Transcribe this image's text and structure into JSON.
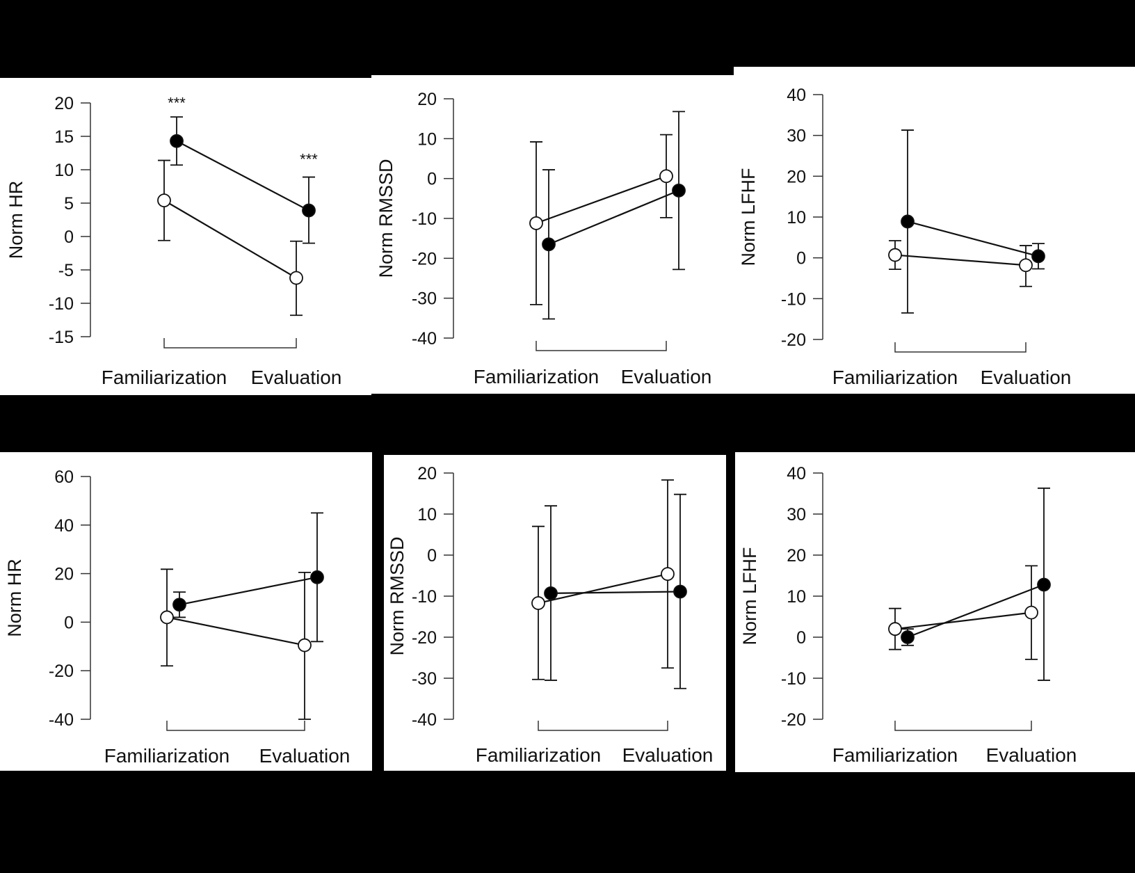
{
  "colors": {
    "background": "#000000",
    "panel": "#ffffff",
    "ink": "#111111"
  },
  "chart_data": [
    {
      "type": "line",
      "panel": "top-left",
      "ylabel": "Norm HR",
      "ylim": [
        -15,
        20
      ],
      "yticks": [
        20,
        15,
        10,
        5,
        0,
        -5,
        -10,
        -15
      ],
      "categories": [
        "Familiarization",
        "Evaluation"
      ],
      "series": [
        {
          "marker": "open",
          "values": [
            5.4,
            -6.2
          ],
          "err_low": [
            -0.6,
            -11.8
          ],
          "err_high": [
            11.4,
            -0.7
          ]
        },
        {
          "marker": "filled",
          "values": [
            14.3,
            3.9
          ],
          "err_low": [
            10.7,
            -1.0
          ],
          "err_high": [
            17.9,
            8.9
          ]
        }
      ],
      "annotations": [
        {
          "text": "***",
          "category": 0,
          "y": 19.2
        },
        {
          "text": "***",
          "category": 1,
          "y": 10.8
        }
      ]
    },
    {
      "type": "line",
      "panel": "top-middle",
      "ylabel": "Norm RMSSD",
      "ylim": [
        -40,
        20
      ],
      "yticks": [
        20,
        10,
        0,
        -10,
        -20,
        -30,
        -40
      ],
      "categories": [
        "Familiarization",
        "Evaluation"
      ],
      "series": [
        {
          "marker": "open",
          "values": [
            -11.2,
            0.6
          ],
          "err_low": [
            -31.6,
            -9.8
          ],
          "err_high": [
            9.2,
            11.0
          ]
        },
        {
          "marker": "filled",
          "values": [
            -16.5,
            -3.0
          ],
          "err_low": [
            -35.2,
            -22.8
          ],
          "err_high": [
            2.2,
            16.8
          ]
        }
      ],
      "annotations": []
    },
    {
      "type": "line",
      "panel": "top-right",
      "ylabel": "Norm LFHF",
      "ylim": [
        -20,
        40
      ],
      "yticks": [
        40,
        30,
        20,
        10,
        0,
        -10,
        -20
      ],
      "categories": [
        "Familiarization",
        "Evaluation"
      ],
      "series": [
        {
          "marker": "open",
          "values": [
            0.7,
            -1.8
          ],
          "err_low": [
            -2.8,
            -7.0
          ],
          "err_high": [
            4.2,
            3.0
          ]
        },
        {
          "marker": "filled",
          "values": [
            8.9,
            0.4
          ],
          "err_low": [
            -13.5,
            -2.7
          ],
          "err_high": [
            31.3,
            3.5
          ]
        }
      ],
      "annotations": []
    },
    {
      "type": "line",
      "panel": "bottom-left",
      "ylabel": "Norm HR",
      "ylim": [
        -40,
        60
      ],
      "yticks": [
        60,
        40,
        20,
        0,
        -20,
        -40
      ],
      "categories": [
        "Familiarization",
        "Evaluation"
      ],
      "series": [
        {
          "marker": "open",
          "values": [
            2.0,
            -9.5
          ],
          "err_low": [
            -18.0,
            -40.0
          ],
          "err_high": [
            21.8,
            20.5
          ]
        },
        {
          "marker": "filled",
          "values": [
            7.2,
            18.5
          ],
          "err_low": [
            2.0,
            -8.0
          ],
          "err_high": [
            12.4,
            45.0
          ]
        }
      ],
      "annotations": []
    },
    {
      "type": "line",
      "panel": "bottom-middle",
      "ylabel": "Norm RMSSD",
      "ylim": [
        -40,
        20
      ],
      "yticks": [
        20,
        10,
        0,
        -10,
        -20,
        -30,
        -40
      ],
      "categories": [
        "Familiarization",
        "Evaluation"
      ],
      "series": [
        {
          "marker": "open",
          "values": [
            -11.7,
            -4.6
          ],
          "err_low": [
            -30.3,
            -27.5
          ],
          "err_high": [
            7.0,
            18.3
          ]
        },
        {
          "marker": "filled",
          "values": [
            -9.3,
            -8.9
          ],
          "err_low": [
            -30.5,
            -32.5
          ],
          "err_high": [
            12.0,
            14.8
          ]
        }
      ],
      "annotations": []
    },
    {
      "type": "line",
      "panel": "bottom-right",
      "ylabel": "Norm LFHF",
      "ylim": [
        -20,
        40
      ],
      "yticks": [
        40,
        30,
        20,
        10,
        0,
        -10,
        -20
      ],
      "categories": [
        "Familiarization",
        "Evaluation"
      ],
      "series": [
        {
          "marker": "open",
          "values": [
            2.0,
            6.0
          ],
          "err_low": [
            -3.0,
            -5.4
          ],
          "err_high": [
            7.0,
            17.4
          ]
        },
        {
          "marker": "filled",
          "values": [
            0.0,
            12.8
          ],
          "err_low": [
            -2.0,
            -10.5
          ],
          "err_high": [
            2.0,
            36.3
          ]
        }
      ],
      "annotations": []
    }
  ]
}
